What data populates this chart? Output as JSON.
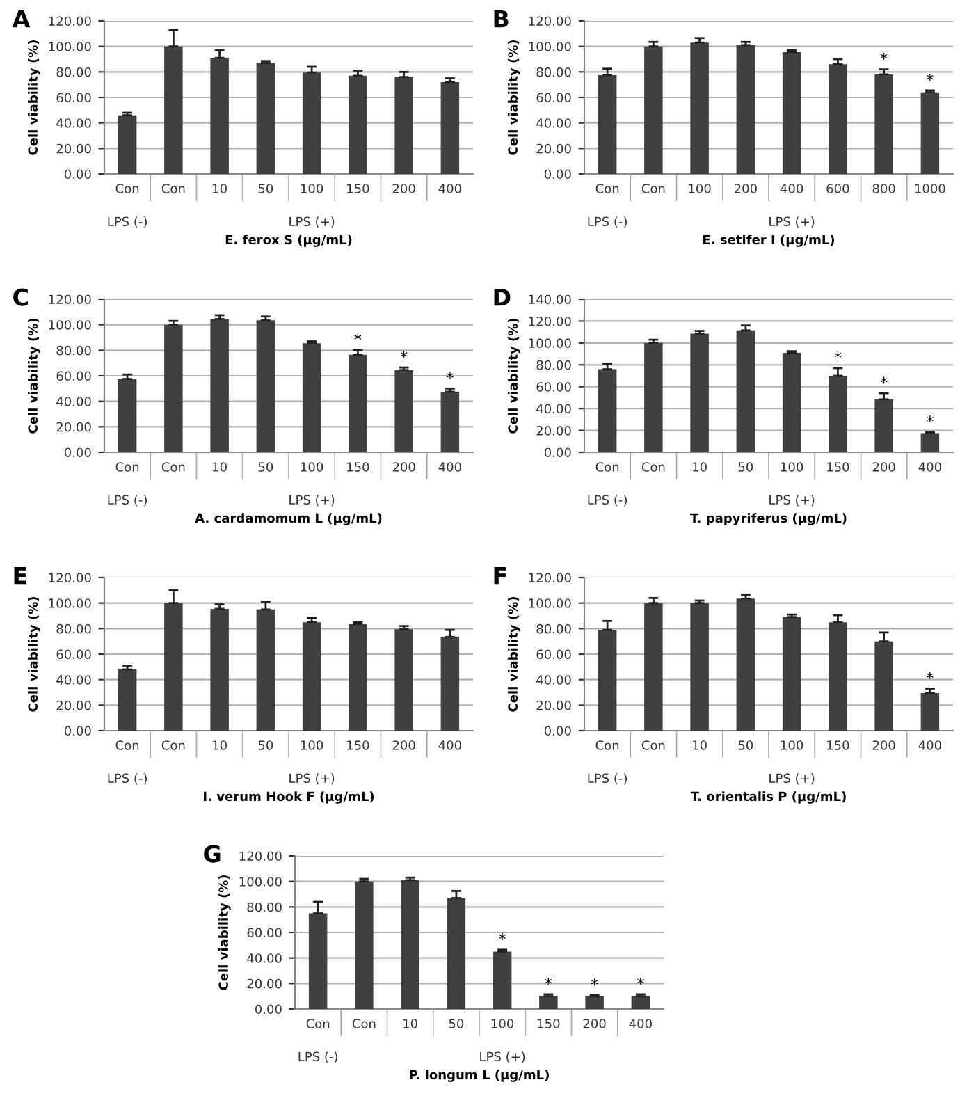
{
  "chart_data": [
    {
      "type": "bar",
      "title": "A",
      "ylabel": "Cell viability (%)",
      "xlabel": "E. ferox S (µg/mL)",
      "categories": [
        "Con",
        "Con",
        "10",
        "50",
        "100",
        "150",
        "200",
        "400"
      ],
      "values": [
        46,
        100,
        91,
        87,
        79.5,
        77,
        76,
        72
      ],
      "errors": [
        [
          46,
          48
        ],
        [
          100,
          113
        ],
        [
          91,
          97
        ],
        [
          87,
          88.5
        ],
        [
          79.5,
          84
        ],
        [
          77,
          81
        ],
        [
          76,
          80
        ],
        [
          72,
          75
        ]
      ],
      "color": "#404040",
      "ylim": [
        0,
        120
      ],
      "yticks": [
        {
          "value": 0,
          "label": "0.00"
        },
        {
          "value": 20,
          "label": "20.00"
        },
        {
          "value": 40,
          "label": "40.00"
        },
        {
          "value": 60,
          "label": "60.00"
        },
        {
          "value": 80,
          "label": "80.00"
        },
        {
          "value": 100,
          "label": "100.00"
        },
        {
          "value": 120,
          "label": "120.00"
        }
      ],
      "grid": "y",
      "legend": false,
      "annotations": [
        "LPS (-)",
        "LPS (+)"
      ]
    },
    {
      "type": "bar",
      "title": "B",
      "ylabel": "Cell viability (%)",
      "xlabel": "E. setifer I (µg/mL)",
      "categories": [
        "Con",
        "Con",
        "100",
        "200",
        "400",
        "600",
        "800",
        "1000"
      ],
      "values": [
        77.5,
        100,
        103,
        101,
        95.5,
        86,
        78,
        64
      ],
      "errors": [
        [
          77.5,
          82.5
        ],
        [
          100,
          103.5
        ],
        [
          103,
          106.5
        ],
        [
          101,
          103.5
        ],
        [
          95.5,
          97
        ],
        [
          86,
          90
        ],
        [
          78,
          82
        ],
        [
          64,
          65.5
        ]
      ],
      "color": "#404040",
      "ylim": [
        0,
        120
      ],
      "yticks": [
        {
          "value": 0,
          "label": "0.00"
        },
        {
          "value": 20,
          "label": "20.00"
        },
        {
          "value": 40,
          "label": "40.00"
        },
        {
          "value": 60,
          "label": "60.00"
        },
        {
          "value": 80,
          "label": "80.00"
        },
        {
          "value": 100,
          "label": "100.00"
        },
        {
          "value": 120,
          "label": "120.00"
        }
      ],
      "grid": "y",
      "legend": false,
      "annotations": [
        "LPS (-)",
        "LPS (+)",
        {
          "text": "*",
          "x": "800",
          "y": 82
        },
        {
          "text": "*",
          "x": "1000",
          "y": 65.5
        }
      ]
    },
    {
      "type": "bar",
      "title": "C",
      "ylabel": "Cell viability (%)",
      "xlabel": "A. cardamomum L (µg/mL)",
      "categories": [
        "Con",
        "Con",
        "10",
        "50",
        "100",
        "150",
        "200",
        "400"
      ],
      "values": [
        57.5,
        100,
        104.5,
        103.5,
        85.5,
        76.5,
        64.5,
        47.5
      ],
      "errors": [
        [
          57.5,
          61
        ],
        [
          100,
          103
        ],
        [
          104.5,
          107.5
        ],
        [
          103.5,
          106.5
        ],
        [
          85.5,
          87
        ],
        [
          76.5,
          80
        ],
        [
          64.5,
          66.5
        ],
        [
          47.5,
          50
        ]
      ],
      "color": "#404040",
      "ylim": [
        0,
        120
      ],
      "yticks": [
        {
          "value": 0,
          "label": "0.00"
        },
        {
          "value": 20,
          "label": "20.00"
        },
        {
          "value": 40,
          "label": "40.00"
        },
        {
          "value": 60,
          "label": "60.00"
        },
        {
          "value": 80,
          "label": "80.00"
        },
        {
          "value": 100,
          "label": "100.00"
        },
        {
          "value": 120,
          "label": "120.00"
        }
      ],
      "grid": "y",
      "legend": false,
      "annotations": [
        "LPS (-)",
        "LPS (+)",
        {
          "text": "*",
          "x": "150",
          "y": 80
        },
        {
          "text": "*",
          "x": "200",
          "y": 66.5
        },
        {
          "text": "*",
          "x": "400",
          "y": 50
        }
      ]
    },
    {
      "type": "bar",
      "title": "D",
      "ylabel": "Cell viability (%)",
      "xlabel": "T. papyriferus (µg/mL)",
      "categories": [
        "Con",
        "Con",
        "10",
        "50",
        "100",
        "150",
        "200",
        "400"
      ],
      "values": [
        76,
        100,
        108.5,
        111.5,
        91,
        70,
        48.5,
        17.5
      ],
      "errors": [
        [
          76,
          81
        ],
        [
          100,
          103
        ],
        [
          108.5,
          111
        ],
        [
          111.5,
          116
        ],
        [
          91,
          92.5
        ],
        [
          70,
          77
        ],
        [
          48.5,
          54
        ],
        [
          17.5,
          18.5
        ]
      ],
      "color": "#404040",
      "ylim": [
        0,
        140
      ],
      "yticks": [
        {
          "value": 0,
          "label": "0.00"
        },
        {
          "value": 20,
          "label": "20.00"
        },
        {
          "value": 40,
          "label": "40.00"
        },
        {
          "value": 60,
          "label": "60.00"
        },
        {
          "value": 80,
          "label": "80.00"
        },
        {
          "value": 100,
          "label": "100.00"
        },
        {
          "value": 120,
          "label": "120.00"
        },
        {
          "value": 140,
          "label": "140.00"
        }
      ],
      "grid": "y",
      "legend": false,
      "annotations": [
        "LPS (-)",
        "LPS (+)",
        {
          "text": "*",
          "x": "150",
          "y": 77
        },
        {
          "text": "*",
          "x": "200",
          "y": 54
        },
        {
          "text": "*",
          "x": "400",
          "y": 18.5
        }
      ]
    },
    {
      "type": "bar",
      "title": "E",
      "ylabel": "Cell viability (%)",
      "xlabel": "I. verum Hook F (µg/mL)",
      "categories": [
        "Con",
        "Con",
        "10",
        "50",
        "100",
        "150",
        "200",
        "400"
      ],
      "values": [
        48,
        100,
        95.5,
        95,
        85,
        83.5,
        79.5,
        73.5
      ],
      "errors": [
        [
          48,
          51
        ],
        [
          100,
          110
        ],
        [
          95.5,
          99
        ],
        [
          95,
          101
        ],
        [
          85,
          88.5
        ],
        [
          83.5,
          85
        ],
        [
          79.5,
          82
        ],
        [
          73.5,
          79
        ]
      ],
      "color": "#404040",
      "ylim": [
        0,
        120
      ],
      "yticks": [
        {
          "value": 0,
          "label": "0.00"
        },
        {
          "value": 20,
          "label": "20.00"
        },
        {
          "value": 40,
          "label": "40.00"
        },
        {
          "value": 60,
          "label": "60.00"
        },
        {
          "value": 80,
          "label": "80.00"
        },
        {
          "value": 100,
          "label": "100.00"
        },
        {
          "value": 120,
          "label": "120.00"
        }
      ],
      "grid": "y",
      "legend": false,
      "annotations": [
        "LPS (-)",
        "LPS (+)"
      ]
    },
    {
      "type": "bar",
      "title": "F",
      "ylabel": "Cell viability (%)",
      "xlabel": "T. orientalis P (µg/mL)",
      "categories": [
        "Con",
        "Con",
        "10",
        "50",
        "100",
        "150",
        "200",
        "400"
      ],
      "values": [
        79,
        100,
        100,
        103.5,
        89,
        85,
        70,
        29.5
      ],
      "errors": [
        [
          79,
          86
        ],
        [
          100,
          104
        ],
        [
          100,
          102
        ],
        [
          103.5,
          106.5
        ],
        [
          89,
          91
        ],
        [
          85,
          90.5
        ],
        [
          70,
          77
        ],
        [
          29.5,
          33
        ]
      ],
      "color": "#404040",
      "ylim": [
        0,
        120
      ],
      "yticks": [
        {
          "value": 0,
          "label": "0.00"
        },
        {
          "value": 20,
          "label": "20.00"
        },
        {
          "value": 40,
          "label": "40.00"
        },
        {
          "value": 60,
          "label": "60.00"
        },
        {
          "value": 80,
          "label": "80.00"
        },
        {
          "value": 100,
          "label": "100.00"
        },
        {
          "value": 120,
          "label": "120.00"
        }
      ],
      "grid": "y",
      "legend": false,
      "annotations": [
        "LPS (-)",
        "LPS (+)",
        {
          "text": "*",
          "x": "400",
          "y": 33
        }
      ]
    },
    {
      "type": "bar",
      "title": "G",
      "ylabel": "Cell viability (%)",
      "xlabel": "P. longum L (µg/mL)",
      "categories": [
        "Con",
        "Con",
        "10",
        "50",
        "100",
        "150",
        "200",
        "400"
      ],
      "values": [
        75,
        100,
        101,
        87,
        45,
        10,
        10,
        10
      ],
      "errors": [
        [
          75,
          84
        ],
        [
          100,
          102
        ],
        [
          101,
          103
        ],
        [
          87,
          92.5
        ],
        [
          45,
          46.5
        ],
        [
          10,
          11.5
        ],
        [
          10,
          10.8
        ],
        [
          10,
          11.5
        ]
      ],
      "color": "#404040",
      "ylim": [
        0,
        120
      ],
      "yticks": [
        {
          "value": 0,
          "label": "0.00"
        },
        {
          "value": 20,
          "label": "20.00"
        },
        {
          "value": 40,
          "label": "40.00"
        },
        {
          "value": 60,
          "label": "60.00"
        },
        {
          "value": 80,
          "label": "80.00"
        },
        {
          "value": 100,
          "label": "100.00"
        },
        {
          "value": 120,
          "label": "120.00"
        }
      ],
      "grid": "y",
      "legend": false,
      "annotations": [
        "LPS (-)",
        "LPS (+)",
        {
          "text": "*",
          "x": "100",
          "y": 46.5
        },
        {
          "text": "*",
          "x": "150",
          "y": 11.5
        },
        {
          "text": "*",
          "x": "200",
          "y": 10.8
        },
        {
          "text": "*",
          "x": "400",
          "y": 11.5
        }
      ]
    }
  ]
}
